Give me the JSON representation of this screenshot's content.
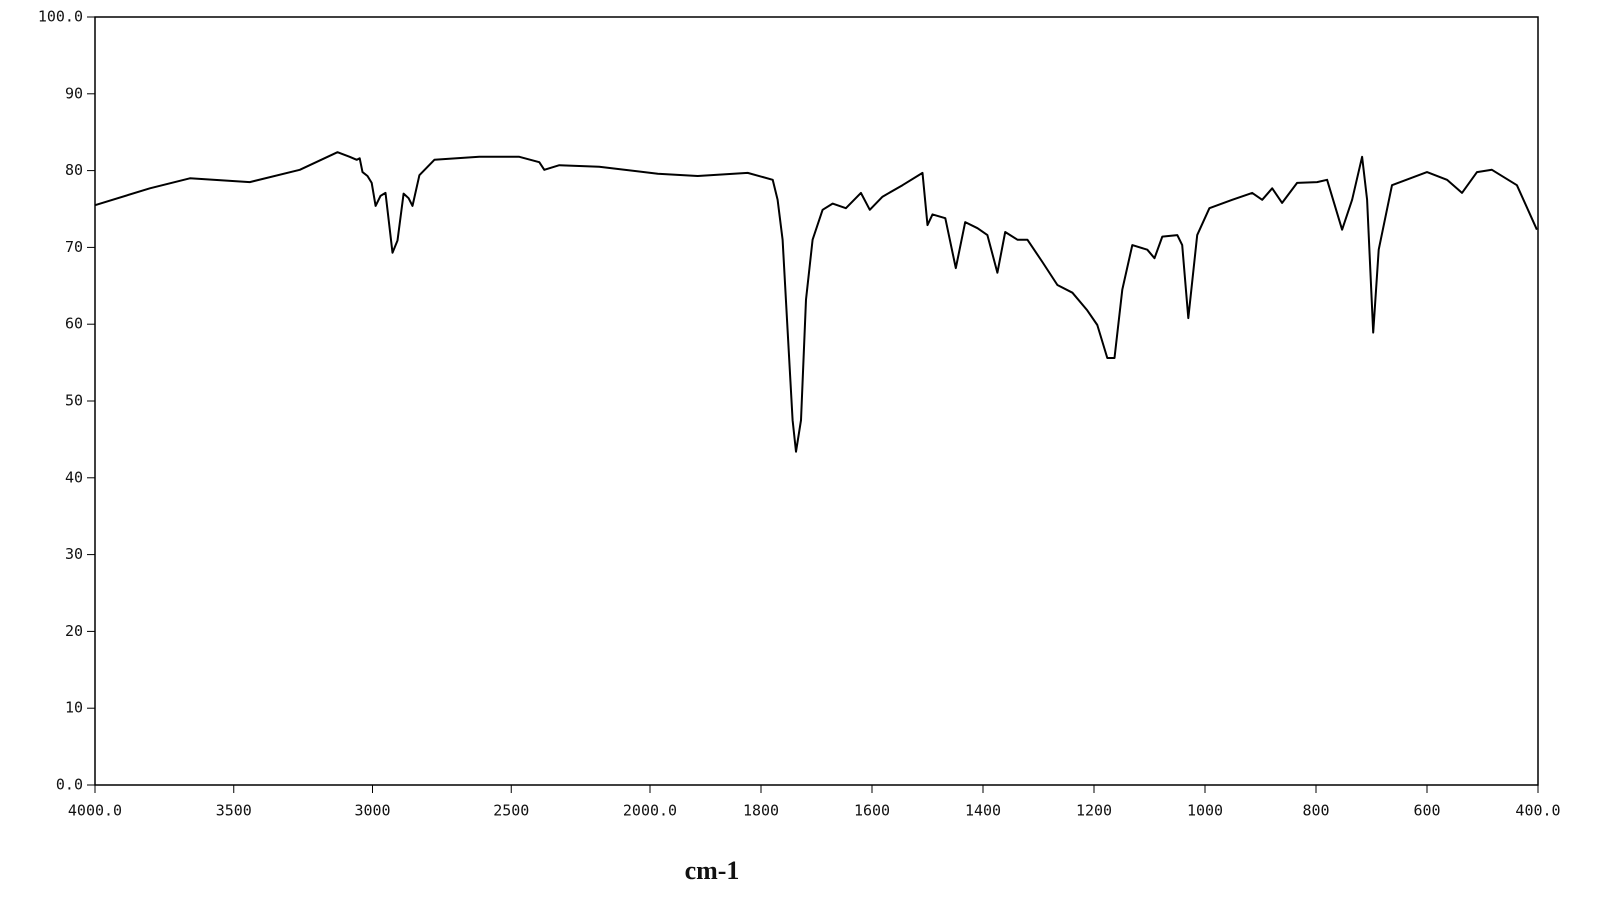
{
  "chart_data": {
    "type": "line",
    "x_label": "cm-1",
    "xlim": [
      4000,
      400
    ],
    "xscale_break": 2000,
    "xscale_factor": 2,
    "xticks": [
      {
        "value": 4000,
        "label": "4000.0"
      },
      3500,
      3000,
      2500,
      {
        "value": 2000,
        "label": "2000.0"
      },
      1800,
      1600,
      1400,
      1200,
      1000,
      800,
      600,
      {
        "value": 400,
        "label": "400.0"
      }
    ],
    "ylim": [
      0,
      100
    ],
    "yticks": [
      {
        "value": 0,
        "label": "0.0"
      },
      10,
      20,
      30,
      40,
      50,
      60,
      70,
      80,
      90,
      {
        "value": 100,
        "label": "100.0"
      }
    ],
    "color": "#000000",
    "x": [
      4000,
      3802,
      3658,
      3442,
      3262,
      3126,
      3082,
      3057,
      3046,
      3036,
      3018,
      3003,
      2989,
      2971,
      2953,
      2928,
      2910,
      2888,
      2870,
      2856,
      2831,
      2777,
      2615,
      2471,
      2399,
      2381,
      2327,
      2183,
      1986,
      1914,
      1824,
      1779,
      1770,
      1761,
      1752,
      1743,
      1737,
      1728,
      1719,
      1707,
      1689,
      1671,
      1647,
      1620,
      1604,
      1581,
      1545,
      1509,
      1500,
      1491,
      1468,
      1449,
      1432,
      1410,
      1392,
      1374,
      1360,
      1338,
      1320,
      1293,
      1266,
      1239,
      1212,
      1194,
      1176,
      1163,
      1149,
      1131,
      1104,
      1091,
      1077,
      1050,
      1041,
      1030,
      1014,
      992,
      951,
      915,
      897,
      879,
      861,
      834,
      798,
      780,
      753,
      735,
      717,
      708,
      697,
      687,
      663,
      600,
      564,
      537,
      510,
      483,
      438,
      402
    ],
    "values": [
      75.5,
      77.7,
      79.0,
      78.5,
      80.1,
      82.4,
      81.8,
      81.4,
      81.6,
      79.8,
      79.3,
      78.4,
      75.4,
      76.7,
      77.1,
      69.3,
      70.9,
      77.0,
      76.4,
      75.4,
      79.4,
      81.4,
      81.8,
      81.8,
      81.1,
      80.1,
      80.7,
      80.5,
      79.6,
      79.3,
      79.7,
      78.8,
      76.2,
      71.0,
      59.2,
      47.5,
      43.4,
      47.5,
      63.2,
      71.0,
      74.9,
      75.7,
      75.1,
      77.1,
      74.9,
      76.6,
      78.1,
      79.7,
      72.9,
      74.3,
      73.8,
      67.3,
      73.3,
      72.5,
      71.6,
      66.7,
      72.0,
      71.0,
      71.0,
      68.1,
      65.1,
      64.1,
      61.8,
      59.9,
      55.6,
      55.6,
      64.5,
      70.3,
      69.7,
      68.6,
      71.4,
      71.6,
      70.3,
      60.8,
      71.6,
      75.1,
      76.2,
      77.1,
      76.2,
      77.7,
      75.8,
      78.4,
      78.5,
      78.8,
      72.3,
      76.2,
      81.8,
      76.2,
      58.9,
      69.7,
      78.1,
      79.8,
      78.8,
      77.1,
      79.8,
      80.1,
      78.1,
      72.3
    ]
  }
}
